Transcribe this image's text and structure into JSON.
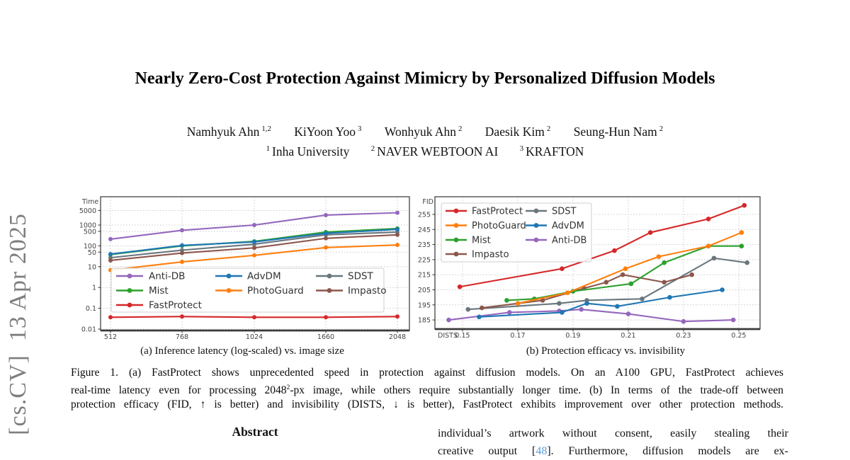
{
  "banner": {
    "text": "[cs.CV]  13 Apr 2025"
  },
  "title": "Nearly Zero-Cost Protection Against Mimicry by Personalized Diffusion Models",
  "authors": [
    {
      "name": "Namhyuk Ahn",
      "sup": "1,2"
    },
    {
      "name": "KiYoon Yoo",
      "sup": "3"
    },
    {
      "name": "Wonhyuk Ahn",
      "sup": "2"
    },
    {
      "name": "Daesik Kim",
      "sup": "2"
    },
    {
      "name": "Seung-Hun Nam",
      "sup": "2"
    }
  ],
  "affiliations": [
    {
      "sup": "1",
      "name": "Inha University"
    },
    {
      "sup": "2",
      "name": "NAVER WEBTOON AI"
    },
    {
      "sup": "3",
      "name": "KRAFTON"
    }
  ],
  "figure": {
    "subcaption_a": "(a) Inference latency (log-scaled) vs. image size",
    "subcaption_b": "(b) Protection efficacy vs. invisibility",
    "caption_line1": "Figure 1.  (a) FastProtect shows unprecedented speed in protection against diffusion models.  On an A100 GPU, FastProtect achieves",
    "caption_line2_pre": "real-time latency even for processing 2048",
    "caption_line2_sup": "2",
    "caption_line2_post": "-px image, while others require substantially longer time. (b) In terms of the trade-off between",
    "caption_line3": "protection efficacy (FID, ↑ is better) and invisibility (DISTS, ↓ is better), FastProtect exhibits improvement over other protection methods."
  },
  "abstract": {
    "heading": "Abstract"
  },
  "right_column": {
    "line1": "individual’s artwork without consent, easily stealing their",
    "line2_pre": "creative output [",
    "line2_ref": "48",
    "line2_post": "]. Furthermore, diffusion models are ex-"
  },
  "colors": {
    "blue": "#1f77b4",
    "orange": "#ff7f0e",
    "green": "#2ca02c",
    "red": "#d62728",
    "purple": "#9467bd",
    "brown": "#8c564b",
    "gray": "#69767d",
    "link_blue": "#5b9bd5",
    "banner_gray": "#7e7e7e",
    "grid_gray": "#c9c9c9",
    "spine_dark": "#333333"
  },
  "chart_data": [
    {
      "id": "latency",
      "type": "line",
      "title": "",
      "xlabel": "",
      "ylabel": "Time",
      "x_categories": [
        "512",
        "768",
        "1024",
        "1660",
        "2048"
      ],
      "y_scale": "log",
      "y_ticks": [
        5000,
        1000,
        500,
        100,
        50,
        10,
        1,
        0.1,
        0.01
      ],
      "ylim": [
        0.01,
        20000
      ],
      "grid": true,
      "legend_position": "lower center",
      "series": [
        {
          "name": "Anti-DB",
          "color_key": "purple",
          "values": [
            210,
            560,
            1000,
            3000,
            3900
          ]
        },
        {
          "name": "SDST",
          "color_key": "gray",
          "values": [
            27,
            62,
            120,
            340,
            460
          ]
        },
        {
          "name": "Impasto",
          "color_key": "brown",
          "values": [
            20,
            45,
            80,
            230,
            340
          ]
        },
        {
          "name": "PhotoGuard",
          "color_key": "orange",
          "values": [
            6.8,
            17,
            35,
            83,
            110
          ]
        },
        {
          "name": "Mist",
          "color_key": "green",
          "values": [
            38,
            100,
            165,
            460,
            680
          ]
        },
        {
          "name": "AdvDM",
          "color_key": "blue",
          "values": [
            40,
            105,
            155,
            400,
            620
          ]
        },
        {
          "name": "FastProtect",
          "color_key": "red",
          "values": [
            0.037,
            0.04,
            0.037,
            0.037,
            0.04
          ]
        }
      ],
      "legend_columns": [
        [
          "Anti-DB",
          "Mist",
          "FastProtect"
        ],
        [
          "AdvDM",
          "PhotoGuard"
        ],
        [
          "SDST",
          "Impasto"
        ]
      ]
    },
    {
      "id": "efficacy",
      "type": "line",
      "title": "",
      "xlabel": "DISTS",
      "ylabel": "FID",
      "x_ticks": [
        "0.15",
        "0.17",
        "0.19",
        "0.21",
        "0.23",
        "0.25"
      ],
      "y_ticks": [
        255,
        245,
        235,
        225,
        215,
        205,
        195,
        185
      ],
      "xlim": [
        0.14,
        0.258
      ],
      "ylim": [
        180,
        267
      ],
      "grid": true,
      "legend_position": "upper left",
      "series": [
        {
          "name": "Anti-DB",
          "color_key": "purple",
          "points": [
            [
              0.145,
              185
            ],
            [
              0.167,
              190
            ],
            [
              0.185,
              191
            ],
            [
              0.193,
              192
            ],
            [
              0.21,
              189
            ],
            [
              0.23,
              184
            ],
            [
              0.248,
              185
            ]
          ]
        },
        {
          "name": "SDST",
          "color_key": "gray",
          "points": [
            [
              0.152,
              192
            ],
            [
              0.185,
              196
            ],
            [
              0.195,
              198
            ],
            [
              0.215,
              199
            ],
            [
              0.241,
              226
            ],
            [
              0.253,
              223
            ]
          ]
        },
        {
          "name": "AdvDM",
          "color_key": "blue",
          "points": [
            [
              0.156,
              187
            ],
            [
              0.186,
              190
            ],
            [
              0.195,
              196
            ],
            [
              0.206,
              194
            ],
            [
              0.225,
              200
            ],
            [
              0.244,
              205
            ]
          ]
        },
        {
          "name": "Impasto",
          "color_key": "brown",
          "points": [
            [
              0.157,
              193
            ],
            [
              0.179,
              198
            ],
            [
              0.194,
              206
            ],
            [
              0.202,
              210
            ],
            [
              0.208,
              215
            ],
            [
              0.223,
              210
            ],
            [
              0.233,
              215
            ]
          ]
        },
        {
          "name": "Mist",
          "color_key": "green",
          "points": [
            [
              0.166,
              198
            ],
            [
              0.176,
              199
            ],
            [
              0.19,
              204
            ],
            [
              0.211,
              209
            ],
            [
              0.223,
              223
            ],
            [
              0.239,
              234
            ],
            [
              0.251,
              234
            ]
          ]
        },
        {
          "name": "PhotoGuard",
          "color_key": "orange",
          "points": [
            [
              0.17,
              196
            ],
            [
              0.188,
              203
            ],
            [
              0.209,
              219
            ],
            [
              0.221,
              227
            ],
            [
              0.239,
              234
            ],
            [
              0.251,
              243
            ]
          ]
        },
        {
          "name": "FastProtect",
          "color_key": "red",
          "points": [
            [
              0.149,
              207
            ],
            [
              0.186,
              219
            ],
            [
              0.205,
              231
            ],
            [
              0.218,
              243
            ],
            [
              0.239,
              252
            ],
            [
              0.252,
              261
            ]
          ]
        }
      ],
      "legend_columns": [
        [
          "FastProtect",
          "PhotoGuard",
          "Mist",
          "Impasto"
        ],
        [
          "SDST",
          "AdvDM",
          "Anti-DB"
        ]
      ]
    }
  ]
}
